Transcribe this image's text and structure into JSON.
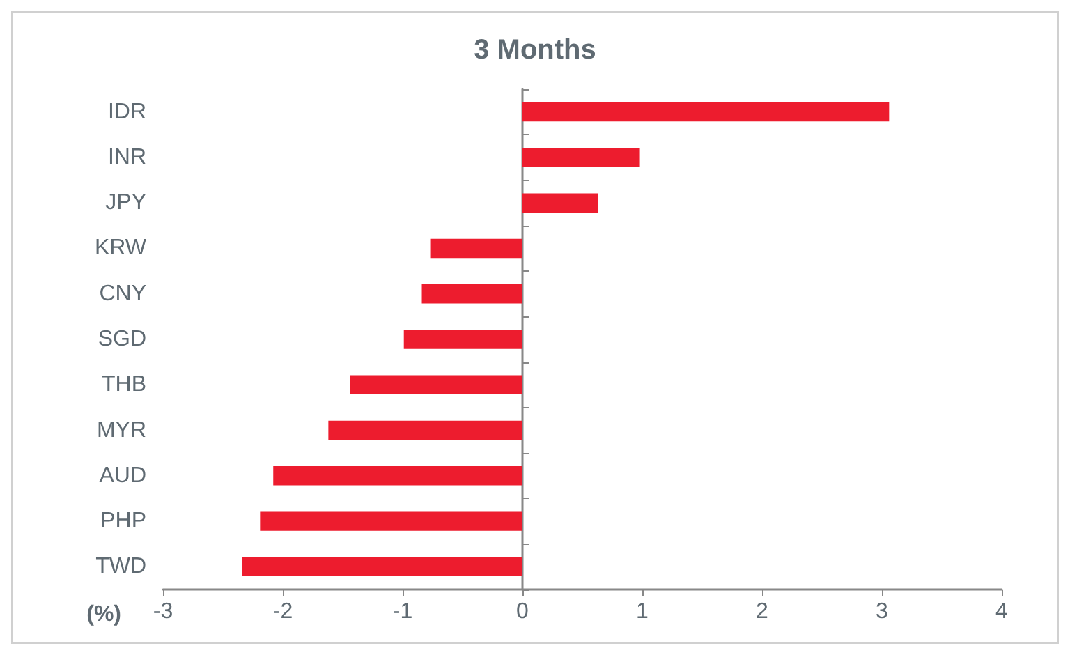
{
  "chart_data": {
    "type": "bar",
    "orientation": "horizontal",
    "title": "3 Months",
    "xlabel": "(%)",
    "categories": [
      "IDR",
      "INR",
      "JPY",
      "KRW",
      "CNY",
      "SGD",
      "THB",
      "MYR",
      "AUD",
      "PHP",
      "TWD"
    ],
    "values": [
      3.06,
      0.98,
      0.63,
      -0.77,
      -0.84,
      -0.99,
      -1.44,
      -1.62,
      -2.08,
      -2.19,
      -2.34
    ],
    "color": "#ed1c2e",
    "xlim": [
      -3,
      4
    ],
    "xticks": [
      -3,
      -2,
      -1,
      0,
      1,
      2,
      3,
      4
    ]
  }
}
